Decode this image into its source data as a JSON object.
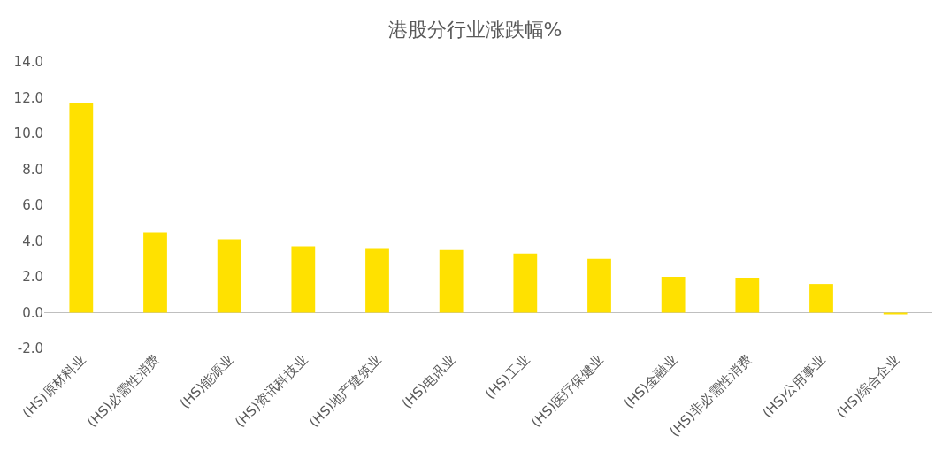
{
  "chart_data": {
    "type": "bar",
    "title": "港股分行业涨跌幅%",
    "categories": [
      "(HS)原材料业",
      "(HS)必需性消费",
      "(HS)能源业",
      "(HS)资讯科技业",
      "(HS)地产建筑业",
      "(HS)电讯业",
      "(HS)工业",
      "(HS)医疗保健业",
      "(HS)金融业",
      "(HS)非必需性消费",
      "(HS)公用事业",
      "(HS)综合企业"
    ],
    "values": [
      11.7,
      4.5,
      4.1,
      3.7,
      3.6,
      3.5,
      3.3,
      3.0,
      2.0,
      1.95,
      1.6,
      -0.1
    ],
    "color": "#ffe100",
    "ylim": [
      -2,
      14
    ],
    "yticks": [
      {
        "value": -2,
        "label": "-2.0"
      },
      {
        "value": 0,
        "label": "0.0"
      },
      {
        "value": 2,
        "label": "2.0"
      },
      {
        "value": 4,
        "label": "4.0"
      },
      {
        "value": 6,
        "label": "6.0"
      },
      {
        "value": 8,
        "label": "8.0"
      },
      {
        "value": 10,
        "label": "10.0"
      },
      {
        "value": 12,
        "label": "12.0"
      },
      {
        "value": 14,
        "label": "14.0"
      }
    ],
    "ref_lines": [
      {
        "axis": "y",
        "value": 0,
        "label": null,
        "color": "#bfbfbf"
      }
    ]
  }
}
